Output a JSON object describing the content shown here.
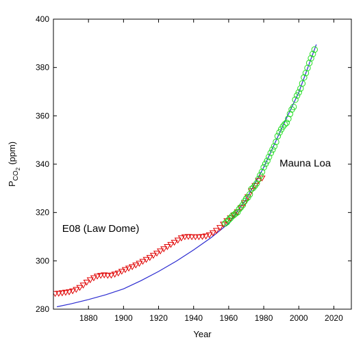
{
  "chart_data": {
    "type": "scatter",
    "xlabel": "Year",
    "ylabel": {
      "main": "P",
      "sub": "CO",
      "subsub": "2",
      "unit": "(ppm)"
    },
    "xlim": [
      1860,
      2030
    ],
    "ylim": [
      280,
      400
    ],
    "xticks": [
      1880,
      1900,
      1920,
      1940,
      1960,
      1980,
      2000,
      2020
    ],
    "yticks": [
      280,
      300,
      320,
      340,
      360,
      380,
      400
    ],
    "grid": false,
    "legend": "none",
    "annotations": [
      {
        "text": "E08 (Law Dome)",
        "x": 1865,
        "y": 312
      },
      {
        "text": "Mauna Loa",
        "x": 1989,
        "y": 339
      }
    ],
    "series": [
      {
        "marker": "triangle-down",
        "color": "#e00000",
        "points": [
          [
            1861,
            286.5
          ],
          [
            1863,
            286.6
          ],
          [
            1865,
            286.8
          ],
          [
            1867,
            287.0
          ],
          [
            1869,
            287.2
          ],
          [
            1871,
            287.6
          ],
          [
            1873,
            288.2
          ],
          [
            1875,
            289.0
          ],
          [
            1877,
            290.0
          ],
          [
            1879,
            291.2
          ],
          [
            1881,
            292.2
          ],
          [
            1883,
            293.0
          ],
          [
            1885,
            293.7
          ],
          [
            1887,
            294.0
          ],
          [
            1889,
            294.2
          ],
          [
            1891,
            294.0
          ],
          [
            1893,
            294.1
          ],
          [
            1895,
            294.5
          ],
          [
            1897,
            295.0
          ],
          [
            1899,
            295.7
          ],
          [
            1901,
            296.4
          ],
          [
            1903,
            297.0
          ],
          [
            1905,
            297.6
          ],
          [
            1907,
            298.3
          ],
          [
            1909,
            299.0
          ],
          [
            1911,
            299.8
          ],
          [
            1913,
            300.6
          ],
          [
            1915,
            301.4
          ],
          [
            1917,
            302.3
          ],
          [
            1919,
            303.2
          ],
          [
            1921,
            304.1
          ],
          [
            1923,
            305.0
          ],
          [
            1925,
            305.9
          ],
          [
            1927,
            306.8
          ],
          [
            1929,
            307.7
          ],
          [
            1931,
            308.6
          ],
          [
            1933,
            309.5
          ],
          [
            1935,
            310.0
          ],
          [
            1937,
            310.1
          ],
          [
            1939,
            310.0
          ],
          [
            1941,
            310.0
          ],
          [
            1943,
            310.0
          ],
          [
            1945,
            310.1
          ],
          [
            1947,
            310.3
          ],
          [
            1949,
            310.8
          ],
          [
            1951,
            311.6
          ],
          [
            1953,
            312.6
          ],
          [
            1955,
            313.8
          ],
          [
            1957,
            315.2
          ],
          [
            1959,
            316.6
          ],
          [
            1961,
            317.8
          ],
          [
            1963,
            319.0
          ],
          [
            1965,
            320.3
          ],
          [
            1967,
            322.0
          ],
          [
            1969,
            324.0
          ],
          [
            1971,
            326.5
          ],
          [
            1973,
            329.0
          ],
          [
            1975,
            331.2
          ],
          [
            1977,
            333.2
          ],
          [
            1979,
            334.3
          ]
        ]
      },
      {
        "marker": "circle",
        "color": "#22dd22",
        "points": [
          [
            1958,
            315.5
          ],
          [
            1959,
            316.0
          ],
          [
            1960,
            316.9
          ],
          [
            1961,
            317.6
          ],
          [
            1962,
            318.5
          ],
          [
            1963,
            319.0
          ],
          [
            1964,
            319.6
          ],
          [
            1965,
            320.1
          ],
          [
            1966,
            321.4
          ],
          [
            1967,
            322.2
          ],
          [
            1968,
            323.1
          ],
          [
            1969,
            324.6
          ],
          [
            1970,
            325.7
          ],
          [
            1971,
            326.3
          ],
          [
            1972,
            327.5
          ],
          [
            1973,
            329.7
          ],
          [
            1974,
            330.2
          ],
          [
            1975,
            331.1
          ],
          [
            1976,
            332.1
          ],
          [
            1977,
            333.8
          ],
          [
            1978,
            335.4
          ],
          [
            1979,
            336.8
          ],
          [
            1980,
            338.7
          ],
          [
            1981,
            340.1
          ],
          [
            1982,
            341.4
          ],
          [
            1983,
            343.0
          ],
          [
            1984,
            344.6
          ],
          [
            1985,
            346.0
          ],
          [
            1986,
            347.4
          ],
          [
            1987,
            349.2
          ],
          [
            1988,
            351.6
          ],
          [
            1989,
            353.1
          ],
          [
            1990,
            354.4
          ],
          [
            1991,
            355.6
          ],
          [
            1992,
            356.5
          ],
          [
            1993,
            357.1
          ],
          [
            1994,
            358.8
          ],
          [
            1995,
            360.8
          ],
          [
            1996,
            362.6
          ],
          [
            1997,
            363.7
          ],
          [
            1998,
            366.7
          ],
          [
            1999,
            368.4
          ],
          [
            2000,
            369.7
          ],
          [
            2001,
            371.3
          ],
          [
            2002,
            373.4
          ],
          [
            2003,
            375.9
          ],
          [
            2004,
            377.7
          ],
          [
            2005,
            379.8
          ],
          [
            2006,
            381.9
          ],
          [
            2007,
            383.8
          ],
          [
            2008,
            385.6
          ],
          [
            2009,
            387.4
          ]
        ]
      },
      {
        "marker": "line",
        "color": "#2a2ad0",
        "points": [
          [
            1862,
            281.0
          ],
          [
            1870,
            282.2
          ],
          [
            1880,
            284.0
          ],
          [
            1890,
            286.0
          ],
          [
            1900,
            288.4
          ],
          [
            1910,
            291.8
          ],
          [
            1920,
            295.6
          ],
          [
            1930,
            299.8
          ],
          [
            1940,
            304.5
          ],
          [
            1950,
            309.6
          ],
          [
            1960,
            315.5
          ],
          [
            1970,
            325.5
          ],
          [
            1980,
            338.7
          ],
          [
            1990,
            354.4
          ],
          [
            2000,
            369.7
          ],
          [
            2010,
            389.5
          ]
        ]
      }
    ]
  }
}
